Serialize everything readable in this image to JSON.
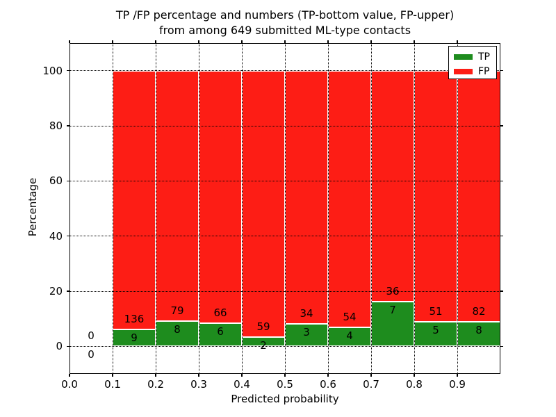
{
  "chart_data": {
    "type": "bar",
    "subtype": "stacked-percentage-histogram",
    "title_line1": "TP /FP percentage and numbers (TP-bottom value, FP-upper)",
    "title_line2": "from among 649 submitted ML-type contacts",
    "xlabel": "Predicted probability",
    "ylabel": "Percentage",
    "total_contacts": 649,
    "xlim": [
      0.0,
      1.0
    ],
    "ylim": [
      -10,
      110
    ],
    "x_ticks": [
      0.0,
      0.1,
      0.2,
      0.3,
      0.4,
      0.5,
      0.6,
      0.7,
      0.8,
      0.9
    ],
    "y_ticks": [
      0,
      20,
      40,
      60,
      80,
      100
    ],
    "grid": true,
    "grid_style": "dotted",
    "normalization": "each bin stacked to 100%; green segment = tp/(tp+fp)*100",
    "colors": {
      "tp": "#1e8c1e",
      "fp": "#fd1d15",
      "bar_edge": "#ffffff",
      "frame": "#000000"
    },
    "legend": {
      "position": "upper-right",
      "entries": [
        {
          "key": "tp",
          "label": "TP"
        },
        {
          "key": "fp",
          "label": "FP"
        }
      ]
    },
    "bins": [
      {
        "range": [
          0.0,
          0.1
        ],
        "tp": 0,
        "fp": 0
      },
      {
        "range": [
          0.1,
          0.2
        ],
        "tp": 9,
        "fp": 136
      },
      {
        "range": [
          0.2,
          0.3
        ],
        "tp": 8,
        "fp": 79
      },
      {
        "range": [
          0.3,
          0.4
        ],
        "tp": 6,
        "fp": 66
      },
      {
        "range": [
          0.4,
          0.5
        ],
        "tp": 2,
        "fp": 59
      },
      {
        "range": [
          0.5,
          0.6
        ],
        "tp": 3,
        "fp": 34
      },
      {
        "range": [
          0.6,
          0.7
        ],
        "tp": 4,
        "fp": 54
      },
      {
        "range": [
          0.7,
          0.8
        ],
        "tp": 7,
        "fp": 36
      },
      {
        "range": [
          0.8,
          0.9
        ],
        "tp": 5,
        "fp": 51
      },
      {
        "range": [
          0.9,
          1.0
        ],
        "tp": 8,
        "fp": 82
      }
    ]
  }
}
